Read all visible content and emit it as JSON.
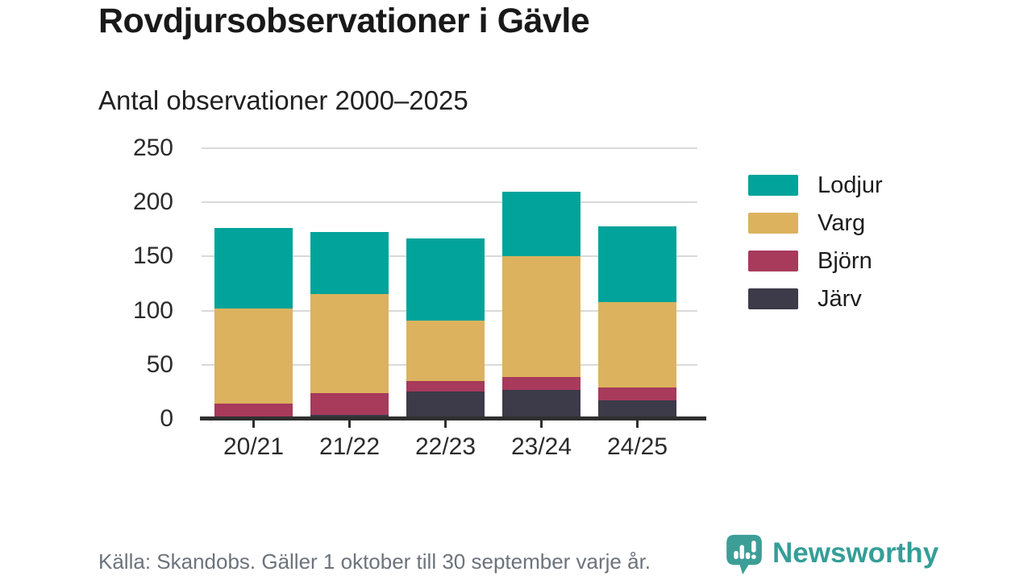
{
  "header": {
    "title": "Rovdjursobservationer i Gävle",
    "subtitle": "Antal observationer 2000–2025"
  },
  "chart_data": {
    "type": "bar",
    "stacked": true,
    "title": "Rovdjursobservationer i Gävle",
    "subtitle": "Antal observationer 2000–2025",
    "categories": [
      "20/21",
      "21/22",
      "22/23",
      "23/24",
      "24/25"
    ],
    "series": [
      {
        "name": "Järv",
        "color": "#3d3a49",
        "values": [
          0,
          4,
          25,
          27,
          17
        ]
      },
      {
        "name": "Björn",
        "color": "#a83a5c",
        "values": [
          14,
          20,
          10,
          12,
          12
        ]
      },
      {
        "name": "Varg",
        "color": "#dcb25e",
        "values": [
          88,
          91,
          56,
          111,
          79
        ]
      },
      {
        "name": "Lodjur",
        "color": "#02a39a",
        "values": [
          74,
          58,
          76,
          60,
          70
        ]
      }
    ],
    "totals": [
      176,
      173,
      167,
      210,
      178
    ],
    "legend_order": [
      "Lodjur",
      "Varg",
      "Björn",
      "Järv"
    ],
    "legend_position": "right",
    "xlabel": "",
    "ylabel": "",
    "ylim": [
      0,
      250
    ],
    "yticks": [
      0,
      50,
      100,
      150,
      200,
      250
    ],
    "grid": true
  },
  "footer": {
    "source": "Källa: Skandobs. Gäller 1 oktober till 30 september varje år.",
    "brand": "Newsworthy"
  },
  "colors": {
    "accent_teal": "#02a39a",
    "gold": "#dcb25e",
    "maroon": "#a83a5c",
    "slate": "#3d3a49",
    "brand_teal": "#359e97",
    "grid": "#d9d9d9",
    "axis": "#2f2f2f",
    "muted_text": "#6d737b"
  }
}
